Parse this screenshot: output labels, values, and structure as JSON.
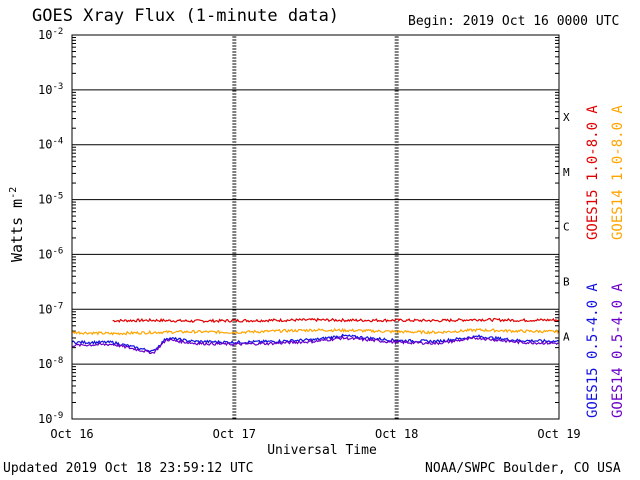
{
  "header": {
    "title": "GOES Xray Flux (1-minute data)",
    "begin": "Begin:  2019 Oct 16 0000 UTC"
  },
  "footer": {
    "updated": "Updated 2019 Oct 18 23:59:12 UTC",
    "credit": "NOAA/SWPC Boulder, CO USA"
  },
  "colors": {
    "goes15_long": "#e00000",
    "goes14_long": "#ffa500",
    "goes15_short": "#1010e0",
    "goes14_short": "#6a00c8"
  },
  "chart_data": {
    "type": "line",
    "title": "GOES Xray Flux (1-minute data)",
    "xlabel": "Universal Time",
    "ylabel": "Watts m",
    "ylabel_sup": "-2",
    "yscale": "log",
    "ylim": [
      1e-09,
      0.01
    ],
    "xlim": [
      "2019-10-16T00:00Z",
      "2019-10-19T00:00Z"
    ],
    "x_ticks": [
      "Oct 16",
      "Oct 17",
      "Oct 18",
      "Oct 19"
    ],
    "y_ticks": [
      {
        "base": "10",
        "exp": "-2",
        "value": 0.01
      },
      {
        "base": "10",
        "exp": "-3",
        "value": 0.001
      },
      {
        "base": "10",
        "exp": "-4",
        "value": 0.0001
      },
      {
        "base": "10",
        "exp": "-5",
        "value": 1e-05
      },
      {
        "base": "10",
        "exp": "-6",
        "value": 1e-06
      },
      {
        "base": "10",
        "exp": "-7",
        "value": 1e-07
      },
      {
        "base": "10",
        "exp": "-8",
        "value": 1e-08
      },
      {
        "base": "10",
        "exp": "-9",
        "value": 1e-09
      }
    ],
    "flare_classes": [
      {
        "label": "X",
        "value": 0.0001
      },
      {
        "label": "M",
        "value": 1e-05
      },
      {
        "label": "C",
        "value": 1e-06
      },
      {
        "label": "B",
        "value": 1e-07
      },
      {
        "label": "A",
        "value": 1e-08
      }
    ],
    "grid": "horizontal",
    "legend": "right, vertical",
    "series": [
      {
        "name": "GOES15 1.0-8.0 A",
        "color": "#e00000",
        "hours": [
          6,
          12,
          18,
          24,
          30,
          36,
          42,
          48,
          54,
          60,
          66,
          72
        ],
        "values": [
          6.2e-08,
          6.3e-08,
          6.1e-08,
          6.2e-08,
          6.3e-08,
          6.4e-08,
          6.3e-08,
          6.3e-08,
          6.2e-08,
          6.5e-08,
          6.3e-08,
          6.4e-08
        ]
      },
      {
        "name": "GOES14 1.0-8.0 A",
        "color": "#ffa500",
        "hours": [
          0,
          6,
          12,
          18,
          24,
          30,
          36,
          42,
          48,
          54,
          60,
          66,
          72
        ],
        "values": [
          3.8e-08,
          3.6e-08,
          3.8e-08,
          3.9e-08,
          3.8e-08,
          4e-08,
          4.2e-08,
          4.1e-08,
          3.9e-08,
          3.8e-08,
          4.2e-08,
          4e-08,
          3.9e-08
        ]
      },
      {
        "name": "GOES15 0.5-4.0 A",
        "color": "#1010e0",
        "hours": [
          0,
          6,
          12,
          14,
          18,
          24,
          30,
          36,
          40,
          48,
          54,
          60,
          66,
          72
        ],
        "values": [
          2.5e-08,
          2.5e-08,
          1.7e-08,
          3e-08,
          2.6e-08,
          2.5e-08,
          2.6e-08,
          2.8e-08,
          3.3e-08,
          2.7e-08,
          2.6e-08,
          3.2e-08,
          2.7e-08,
          2.6e-08
        ]
      },
      {
        "name": "GOES14 0.5-4.0 A",
        "color": "#6a00c8",
        "hours": [
          0,
          6,
          12,
          14,
          18,
          24,
          30,
          36,
          40,
          48,
          54,
          60,
          66,
          72
        ],
        "values": [
          2.2e-08,
          2.3e-08,
          1.6e-08,
          2.8e-08,
          2.4e-08,
          2.3e-08,
          2.4e-08,
          2.6e-08,
          3e-08,
          2.5e-08,
          2.4e-08,
          3e-08,
          2.5e-08,
          2.4e-08
        ]
      }
    ]
  }
}
